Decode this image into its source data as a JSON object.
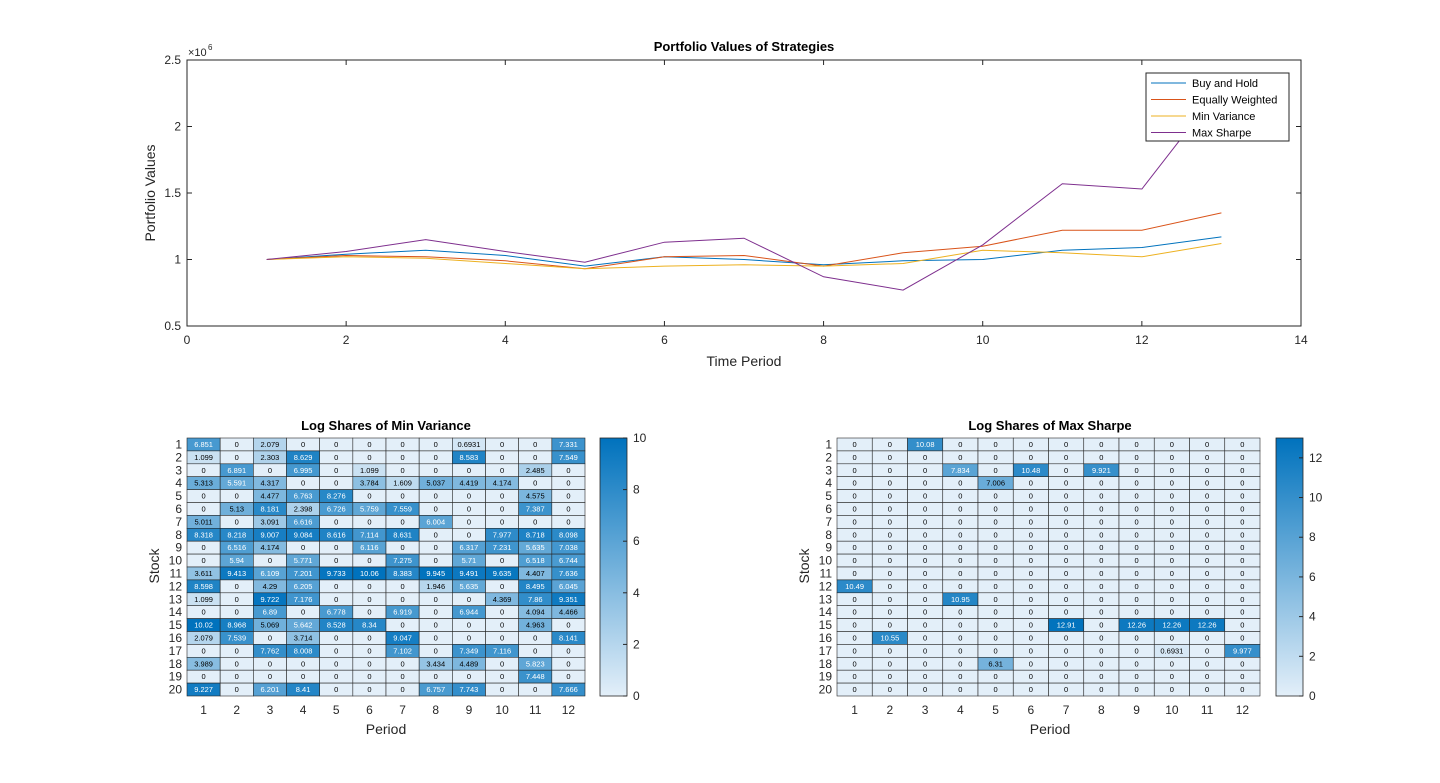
{
  "chart_data": [
    {
      "type": "line",
      "title": "Portfolio Values of Strategies",
      "xlabel": "Time Period",
      "ylabel": "Portfolio Values",
      "y_exponent_label": "×10",
      "y_exponent_power": "6",
      "xlim": [
        0,
        14
      ],
      "ylim": [
        0.5,
        2.5
      ],
      "y_multiplier": 1000000,
      "xticks": [
        0,
        2,
        4,
        6,
        8,
        10,
        12,
        14
      ],
      "yticks": [
        0.5,
        1,
        1.5,
        2,
        2.5
      ],
      "ytick_labels": [
        "0.5",
        "1",
        "1.5",
        "2",
        "2.5"
      ],
      "legend_position": "top-right",
      "x": [
        1,
        2,
        3,
        4,
        5,
        6,
        7,
        8,
        9,
        10,
        11,
        12,
        13
      ],
      "series": [
        {
          "name": "Buy and Hold",
          "color": "#0072BD",
          "values": [
            1.0,
            1.04,
            1.07,
            1.03,
            0.95,
            1.02,
            1.0,
            0.96,
            0.99,
            1.0,
            1.07,
            1.09,
            1.17
          ]
        },
        {
          "name": "Equally Weighted",
          "color": "#D95319",
          "values": [
            1.0,
            1.03,
            1.02,
            0.99,
            0.93,
            1.02,
            1.03,
            0.95,
            1.05,
            1.1,
            1.22,
            1.22,
            1.35
          ]
        },
        {
          "name": "Min Variance",
          "color": "#EDB120",
          "values": [
            1.0,
            1.02,
            1.01,
            0.97,
            0.93,
            0.95,
            0.96,
            0.95,
            0.97,
            1.07,
            1.05,
            1.02,
            1.12
          ]
        },
        {
          "name": "Max Sharpe",
          "color": "#7E2F8E",
          "values": [
            1.0,
            1.06,
            1.15,
            1.06,
            0.98,
            1.13,
            1.16,
            0.87,
            0.77,
            1.11,
            1.57,
            1.53,
            2.3
          ]
        }
      ]
    },
    {
      "type": "heatmap",
      "title": "Log Shares of Min Variance",
      "xlabel": "Period",
      "ylabel": "Stock",
      "x_categories": [
        "1",
        "2",
        "3",
        "4",
        "5",
        "6",
        "7",
        "8",
        "9",
        "10",
        "11",
        "12"
      ],
      "y_categories": [
        "1",
        "2",
        "3",
        "4",
        "5",
        "6",
        "7",
        "8",
        "9",
        "10",
        "11",
        "12",
        "13",
        "14",
        "15",
        "16",
        "17",
        "18",
        "19",
        "20"
      ],
      "color_range": [
        0,
        10
      ],
      "colorbar_ticks": [
        "0",
        "2",
        "4",
        "6",
        "8",
        "10"
      ],
      "colorbar_values": [
        0,
        2,
        4,
        6,
        8,
        10
      ],
      "cells": [
        [
          "6.851",
          "0",
          "2.079",
          "0",
          "0",
          "0",
          "0",
          "0",
          "0.6931",
          "0",
          "0",
          "7.331"
        ],
        [
          "1.099",
          "0",
          "2.303",
          "8.629",
          "0",
          "0",
          "0",
          "0",
          "8.583",
          "0",
          "0",
          "7.549"
        ],
        [
          "0",
          "6.891",
          "0",
          "6.995",
          "0",
          "1.099",
          "0",
          "0",
          "0",
          "0",
          "2.485",
          "0"
        ],
        [
          "5.313",
          "5.591",
          "4.317",
          "0",
          "0",
          "3.784",
          "1.609",
          "5.037",
          "4.419",
          "4.174",
          "0",
          "0"
        ],
        [
          "0",
          "0",
          "4.477",
          "6.763",
          "8.276",
          "0",
          "0",
          "0",
          "0",
          "0",
          "4.575",
          "0"
        ],
        [
          "0",
          "5.13",
          "8.181",
          "2.398",
          "6.726",
          "5.759",
          "7.559",
          "0",
          "0",
          "0",
          "7.387",
          "0"
        ],
        [
          "5.011",
          "0",
          "3.091",
          "6.616",
          "0",
          "0",
          "0",
          "6.004",
          "0",
          "0",
          "0",
          "0"
        ],
        [
          "8.318",
          "8.218",
          "9.007",
          "9.084",
          "8.616",
          "7.114",
          "8.631",
          "0",
          "0",
          "7.977",
          "8.718",
          "8.098"
        ],
        [
          "0",
          "6.516",
          "4.174",
          "0",
          "0",
          "6.116",
          "0",
          "0",
          "6.317",
          "7.231",
          "5.635",
          "7.038"
        ],
        [
          "0",
          "5.94",
          "0",
          "5.771",
          "0",
          "0",
          "7.275",
          "0",
          "5.71",
          "0",
          "6.518",
          "6.744"
        ],
        [
          "3.611",
          "9.413",
          "6.109",
          "7.201",
          "9.733",
          "10.06",
          "8.383",
          "9.945",
          "9.491",
          "9.635",
          "4.407",
          "7.636"
        ],
        [
          "8.598",
          "0",
          "4.29",
          "6.205",
          "0",
          "0",
          "0",
          "1.946",
          "5.635",
          "0",
          "8.495",
          "6.045"
        ],
        [
          "1.099",
          "0",
          "9.722",
          "7.176",
          "0",
          "0",
          "0",
          "0",
          "0",
          "4.369",
          "7.86",
          "9.351"
        ],
        [
          "0",
          "0",
          "6.89",
          "0",
          "6.778",
          "0",
          "6.919",
          "0",
          "6.944",
          "0",
          "4.094",
          "4.466"
        ],
        [
          "10.02",
          "8.968",
          "5.069",
          "5.642",
          "8.528",
          "8.34",
          "0",
          "0",
          "0",
          "0",
          "4.963",
          "0"
        ],
        [
          "2.079",
          "7.539",
          "0",
          "3.714",
          "0",
          "0",
          "9.047",
          "0",
          "0",
          "0",
          "0",
          "8.141"
        ],
        [
          "0",
          "0",
          "7.762",
          "8.008",
          "0",
          "0",
          "7.102",
          "0",
          "7.349",
          "7.116",
          "0",
          "0"
        ],
        [
          "3.989",
          "0",
          "0",
          "0",
          "0",
          "0",
          "0",
          "3.434",
          "4.489",
          "0",
          "5.823",
          "0"
        ],
        [
          "0",
          "0",
          "0",
          "0",
          "0",
          "0",
          "0",
          "0",
          "0",
          "0",
          "7.448",
          "0"
        ],
        [
          "9.227",
          "0",
          "6.201",
          "8.41",
          "0",
          "0",
          "0",
          "6.757",
          "7.743",
          "0",
          "0",
          "7.666"
        ]
      ]
    },
    {
      "type": "heatmap",
      "title": "Log Shares of Max Sharpe",
      "xlabel": "Period",
      "ylabel": "Stock",
      "x_categories": [
        "1",
        "2",
        "3",
        "4",
        "5",
        "6",
        "7",
        "8",
        "9",
        "10",
        "11",
        "12"
      ],
      "y_categories": [
        "1",
        "2",
        "3",
        "4",
        "5",
        "6",
        "7",
        "8",
        "9",
        "10",
        "11",
        "12",
        "13",
        "14",
        "15",
        "16",
        "17",
        "18",
        "19",
        "20"
      ],
      "color_range": [
        0,
        13
      ],
      "colorbar_ticks": [
        "0",
        "2",
        "4",
        "6",
        "8",
        "10",
        "12"
      ],
      "colorbar_values": [
        0,
        2,
        4,
        6,
        8,
        10,
        12
      ],
      "cells": [
        [
          "0",
          "0",
          "10.08",
          "0",
          "0",
          "0",
          "0",
          "0",
          "0",
          "0",
          "0",
          "0"
        ],
        [
          "0",
          "0",
          "0",
          "0",
          "0",
          "0",
          "0",
          "0",
          "0",
          "0",
          "0",
          "0"
        ],
        [
          "0",
          "0",
          "0",
          "7.834",
          "0",
          "10.48",
          "0",
          "9.921",
          "0",
          "0",
          "0",
          "0"
        ],
        [
          "0",
          "0",
          "0",
          "0",
          "7.006",
          "0",
          "0",
          "0",
          "0",
          "0",
          "0",
          "0"
        ],
        [
          "0",
          "0",
          "0",
          "0",
          "0",
          "0",
          "0",
          "0",
          "0",
          "0",
          "0",
          "0"
        ],
        [
          "0",
          "0",
          "0",
          "0",
          "0",
          "0",
          "0",
          "0",
          "0",
          "0",
          "0",
          "0"
        ],
        [
          "0",
          "0",
          "0",
          "0",
          "0",
          "0",
          "0",
          "0",
          "0",
          "0",
          "0",
          "0"
        ],
        [
          "0",
          "0",
          "0",
          "0",
          "0",
          "0",
          "0",
          "0",
          "0",
          "0",
          "0",
          "0"
        ],
        [
          "0",
          "0",
          "0",
          "0",
          "0",
          "0",
          "0",
          "0",
          "0",
          "0",
          "0",
          "0"
        ],
        [
          "0",
          "0",
          "0",
          "0",
          "0",
          "0",
          "0",
          "0",
          "0",
          "0",
          "0",
          "0"
        ],
        [
          "0",
          "0",
          "0",
          "0",
          "0",
          "0",
          "0",
          "0",
          "0",
          "0",
          "0",
          "0"
        ],
        [
          "10.49",
          "0",
          "0",
          "0",
          "0",
          "0",
          "0",
          "0",
          "0",
          "0",
          "0",
          "0"
        ],
        [
          "0",
          "0",
          "0",
          "10.95",
          "0",
          "0",
          "0",
          "0",
          "0",
          "0",
          "0",
          "0"
        ],
        [
          "0",
          "0",
          "0",
          "0",
          "0",
          "0",
          "0",
          "0",
          "0",
          "0",
          "0",
          "0"
        ],
        [
          "0",
          "0",
          "0",
          "0",
          "0",
          "0",
          "12.91",
          "0",
          "12.26",
          "12.26",
          "12.26",
          "0"
        ],
        [
          "0",
          "10.55",
          "0",
          "0",
          "0",
          "0",
          "0",
          "0",
          "0",
          "0",
          "0",
          "0"
        ],
        [
          "0",
          "0",
          "0",
          "0",
          "0",
          "0",
          "0",
          "0",
          "0",
          "0.6931",
          "0",
          "9.977"
        ],
        [
          "0",
          "0",
          "0",
          "0",
          "6.31",
          "0",
          "0",
          "0",
          "0",
          "0",
          "0",
          "0"
        ],
        [
          "0",
          "0",
          "0",
          "0",
          "0",
          "0",
          "0",
          "0",
          "0",
          "0",
          "0",
          "0"
        ],
        [
          "0",
          "0",
          "0",
          "0",
          "0",
          "0",
          "0",
          "0",
          "0",
          "0",
          "0",
          "0"
        ]
      ]
    }
  ]
}
